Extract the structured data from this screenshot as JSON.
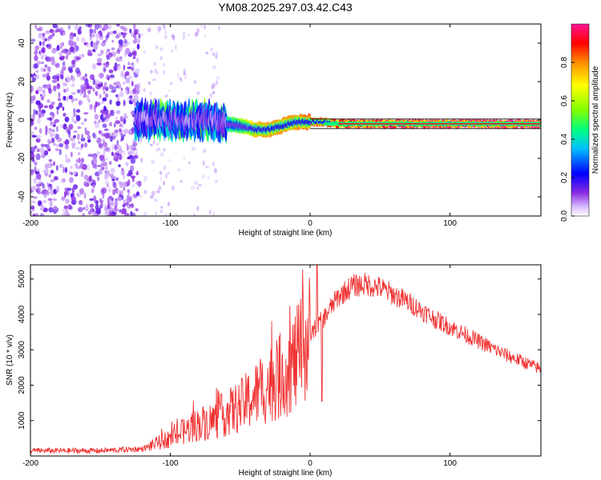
{
  "title": "YM08.2025.297.03.42.C43",
  "chart_data": [
    {
      "type": "heatmap",
      "title": "YM08.2025.297.03.42.C43",
      "xlabel": "Height of straight line (km)",
      "ylabel": "Frequency (Hz)",
      "xlim": [
        -200,
        165
      ],
      "ylim": [
        -50,
        50
      ],
      "x_ticks": [
        -200,
        -100,
        0,
        100
      ],
      "y_ticks": [
        -40,
        -20,
        0,
        20,
        40
      ],
      "colorbar": {
        "label": "Normalized spectral amplitude",
        "range": [
          0,
          1
        ],
        "ticks": [
          "0.0",
          "0.2",
          "0.4",
          "0.6",
          "0.8"
        ],
        "tick_values": [
          0.0,
          0.2,
          0.4,
          0.6,
          0.8
        ]
      },
      "signal_track": {
        "x": [
          -125,
          -110,
          -95,
          -80,
          -70,
          -60,
          -50,
          -40,
          -30,
          -20,
          -10,
          0,
          10,
          20,
          40,
          60,
          80,
          100,
          165
        ],
        "freq": [
          0,
          0,
          0,
          0,
          0,
          -2,
          -3,
          -5,
          -5,
          -3,
          -1,
          -1,
          -1,
          -2,
          -2,
          -2,
          -2,
          -2,
          -2
        ],
        "amplitude": [
          0.35,
          0.45,
          0.5,
          0.5,
          0.45,
          0.45,
          0.55,
          0.75,
          0.8,
          0.8,
          0.8,
          0.85,
          0.85,
          0.9,
          0.92,
          0.95,
          0.95,
          0.97,
          1.0
        ]
      }
    },
    {
      "type": "line",
      "xlabel": "Height of straight line (km)",
      "ylabel": "SNR (10 * v/v)",
      "xlim": [
        -200,
        165
      ],
      "ylim": [
        0,
        5400
      ],
      "x_ticks": [
        -200,
        -100,
        0,
        100
      ],
      "y_ticks": [
        1000,
        2000,
        3000,
        4000,
        5000
      ],
      "series": [
        {
          "name": "SNR",
          "color": "#f03232",
          "x": [
            -200,
            -150,
            -120,
            -110,
            -100,
            -90,
            -80,
            -70,
            -60,
            -50,
            -40,
            -30,
            -20,
            -10,
            0,
            5,
            10,
            20,
            30,
            40,
            50,
            60,
            70,
            80,
            90,
            100,
            110,
            120,
            130,
            140,
            150,
            165
          ],
          "y": [
            150,
            150,
            200,
            350,
            500,
            700,
            900,
            1000,
            1200,
            1400,
            1700,
            2000,
            2300,
            2700,
            3400,
            3700,
            3900,
            4500,
            4800,
            4850,
            4750,
            4550,
            4350,
            4100,
            3850,
            3650,
            3450,
            3250,
            3050,
            2850,
            2700,
            2450
          ]
        }
      ]
    }
  ]
}
